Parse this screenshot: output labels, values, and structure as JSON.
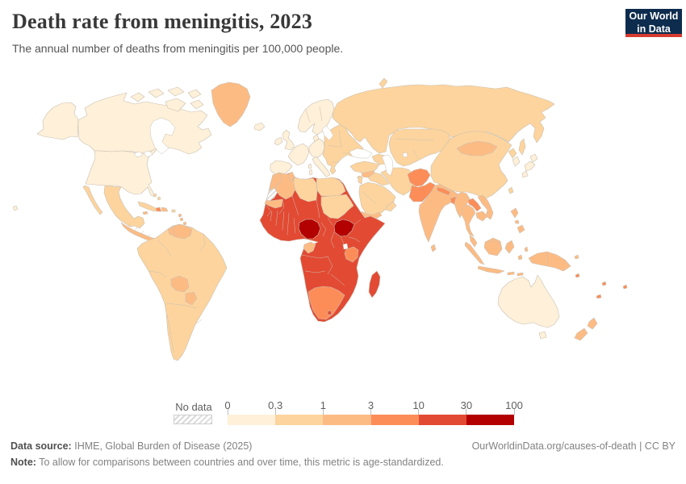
{
  "header": {
    "title": "Death rate from meningitis, 2023",
    "subtitle": "The annual number of deaths from meningitis per 100,000 people.",
    "logo": {
      "line1": "Our World",
      "line2": "in Data",
      "bg_color": "#0d2c4e",
      "accent_color": "#d63b2f"
    }
  },
  "legend": {
    "no_data_label": "No data",
    "tick_labels": [
      "0",
      "0.3",
      "1",
      "3",
      "10",
      "30",
      "100"
    ]
  },
  "footer": {
    "source_label": "Data source:",
    "source_text": "IHME, Global Burden of Disease (2025)",
    "link_text": "OurWorldinData.org/causes-of-death | CC BY",
    "note_label": "Note:",
    "note_text": "To allow for comparisons between countries and over time, this metric is age-standardized."
  },
  "map": {
    "border_color": "#c9c0b1",
    "sea_color": "#ffffff"
  },
  "chart_data": {
    "type": "choropleth-map",
    "title": "Death rate from meningitis, 2023",
    "metric": "Annual deaths from meningitis per 100,000 people (age-standardized)",
    "year": "2023",
    "unit": "deaths per 100,000 people",
    "legend_position": "bottom",
    "scale": {
      "type": "threshold-bins",
      "thresholds": [
        "0",
        "0.3",
        "1",
        "3",
        "10",
        "30",
        "100"
      ],
      "bin_labels": [
        "0-0.3",
        "0.3-1",
        "1-3",
        "3-10",
        "10-30",
        "30-100"
      ],
      "colors": [
        "#fef0d9",
        "#fdd49e",
        "#fdbb84",
        "#fc8d59",
        "#e34a33",
        "#b30000"
      ],
      "no_data": "hatched"
    },
    "regions": [
      {
        "id": "united-states",
        "label": "United States",
        "bin": 0
      },
      {
        "id": "canada",
        "label": "Canada",
        "bin": 0
      },
      {
        "id": "greenland",
        "label": "Greenland",
        "bin": 2
      },
      {
        "id": "iceland",
        "label": "Iceland",
        "bin": 0
      },
      {
        "id": "hawaii",
        "label": "Hawaii (US)",
        "bin": 0
      },
      {
        "id": "mexico",
        "label": "Mexico",
        "bin": 1
      },
      {
        "id": "central-america",
        "label": "Central America",
        "bin": 2
      },
      {
        "id": "cuba",
        "label": "Cuba",
        "bin": 1
      },
      {
        "id": "haiti",
        "label": "Haiti",
        "bin": 3
      },
      {
        "id": "dominican-republic",
        "label": "Dominican Republic",
        "bin": 2
      },
      {
        "id": "jamaica",
        "label": "Jamaica",
        "bin": 2
      },
      {
        "id": "puerto-rico",
        "label": "Puerto Rico",
        "bin": 1
      },
      {
        "id": "bahamas",
        "label": "Bahamas",
        "bin": 1
      },
      {
        "id": "lesser-antilles",
        "label": "Lesser Antilles",
        "bin": 2
      },
      {
        "id": "trinidad-and-tobago",
        "label": "Trinidad and Tobago",
        "bin": 2
      },
      {
        "id": "south-america",
        "label": "South America (Brazil, Andes, Southern Cone)",
        "bin": 1
      },
      {
        "id": "venezuela",
        "label": "Venezuela",
        "bin": 2
      },
      {
        "id": "bolivia",
        "label": "Bolivia",
        "bin": 2
      },
      {
        "id": "paraguay",
        "label": "Paraguay",
        "bin": 2
      },
      {
        "id": "western-europe",
        "label": "Western & Northern Europe",
        "bin": 0
      },
      {
        "id": "eastern-europe",
        "label": "Eastern Europe & Balkans",
        "bin": 1
      },
      {
        "id": "russia",
        "label": "Russia",
        "bin": 1
      },
      {
        "id": "central-asia",
        "label": "Kazakhstan & Central Asia",
        "bin": 1
      },
      {
        "id": "caucasus",
        "label": "Caucasus",
        "bin": 1
      },
      {
        "id": "turkey",
        "label": "Turkey",
        "bin": 1
      },
      {
        "id": "cyprus",
        "label": "Cyprus",
        "bin": 1
      },
      {
        "id": "syria",
        "label": "Syria",
        "bin": 2
      },
      {
        "id": "levant",
        "label": "Israel & Jordan",
        "bin": 1
      },
      {
        "id": "iraq",
        "label": "Iraq",
        "bin": 1
      },
      {
        "id": "saudi-arabia",
        "label": "Saudi Arabia",
        "bin": 1
      },
      {
        "id": "yemen",
        "label": "Yemen",
        "bin": 2
      },
      {
        "id": "oman",
        "label": "Oman",
        "bin": 1
      },
      {
        "id": "iran",
        "label": "Iran",
        "bin": 1
      },
      {
        "id": "afghanistan",
        "label": "Afghanistan",
        "bin": 3
      },
      {
        "id": "pakistan",
        "label": "Pakistan",
        "bin": 3
      },
      {
        "id": "india",
        "label": "India",
        "bin": 2
      },
      {
        "id": "nepal",
        "label": "Nepal",
        "bin": 3
      },
      {
        "id": "bangladesh",
        "label": "Bangladesh",
        "bin": 3
      },
      {
        "id": "sri-lanka",
        "label": "Sri Lanka",
        "bin": 2
      },
      {
        "id": "china",
        "label": "China",
        "bin": 1
      },
      {
        "id": "mongolia",
        "label": "Mongolia",
        "bin": 2
      },
      {
        "id": "north-korea",
        "label": "North Korea",
        "bin": 1
      },
      {
        "id": "south-korea",
        "label": "South Korea",
        "bin": 0
      },
      {
        "id": "japan",
        "label": "Japan",
        "bin": 0
      },
      {
        "id": "taiwan",
        "label": "Taiwan",
        "bin": 1
      },
      {
        "id": "myanmar",
        "label": "Myanmar",
        "bin": 2
      },
      {
        "id": "thailand",
        "label": "Thailand",
        "bin": 2
      },
      {
        "id": "laos",
        "label": "Laos",
        "bin": 3
      },
      {
        "id": "vietnam",
        "label": "Vietnam",
        "bin": 2
      },
      {
        "id": "cambodia",
        "label": "Cambodia",
        "bin": 2
      },
      {
        "id": "malaysia",
        "label": "Malaysia",
        "bin": 2
      },
      {
        "id": "indonesia",
        "label": "Indonesia",
        "bin": 2
      },
      {
        "id": "philippines",
        "label": "Philippines",
        "bin": 2
      },
      {
        "id": "new-guinea",
        "label": "Papua New Guinea",
        "bin": 2
      },
      {
        "id": "pacific-islands",
        "label": "Pacific Islands",
        "bin": 3
      },
      {
        "id": "australia",
        "label": "Australia",
        "bin": 0
      },
      {
        "id": "new-zealand",
        "label": "New Zealand",
        "bin": 2
      },
      {
        "id": "morocco",
        "label": "Morocco",
        "bin": 2
      },
      {
        "id": "western-sahara",
        "label": "Western Sahara",
        "bin": -1
      },
      {
        "id": "algeria",
        "label": "Algeria",
        "bin": 2
      },
      {
        "id": "tunisia",
        "label": "Tunisia",
        "bin": 2
      },
      {
        "id": "libya",
        "label": "Libya",
        "bin": 1
      },
      {
        "id": "egypt",
        "label": "Egypt",
        "bin": 1
      },
      {
        "id": "mauritania",
        "label": "Mauritania",
        "bin": 2
      },
      {
        "id": "sudan",
        "label": "Sudan",
        "bin": 1
      },
      {
        "id": "sub-saharan-africa",
        "label": "Sub-Saharan Africa (most countries)",
        "bin": 4
      },
      {
        "id": "nigeria",
        "label": "Nigeria",
        "bin": 5
      },
      {
        "id": "south-sudan",
        "label": "South Sudan",
        "bin": 5
      },
      {
        "id": "tanzania",
        "label": "Tanzania",
        "bin": 3
      },
      {
        "id": "gabon-congo",
        "label": "Gabon & Congo",
        "bin": 2
      },
      {
        "id": "southern-africa",
        "label": "Namibia, Botswana & South Africa",
        "bin": 3
      },
      {
        "id": "lesotho",
        "label": "Lesotho",
        "bin": 4
      },
      {
        "id": "madagascar",
        "label": "Madagascar",
        "bin": 4
      }
    ]
  }
}
